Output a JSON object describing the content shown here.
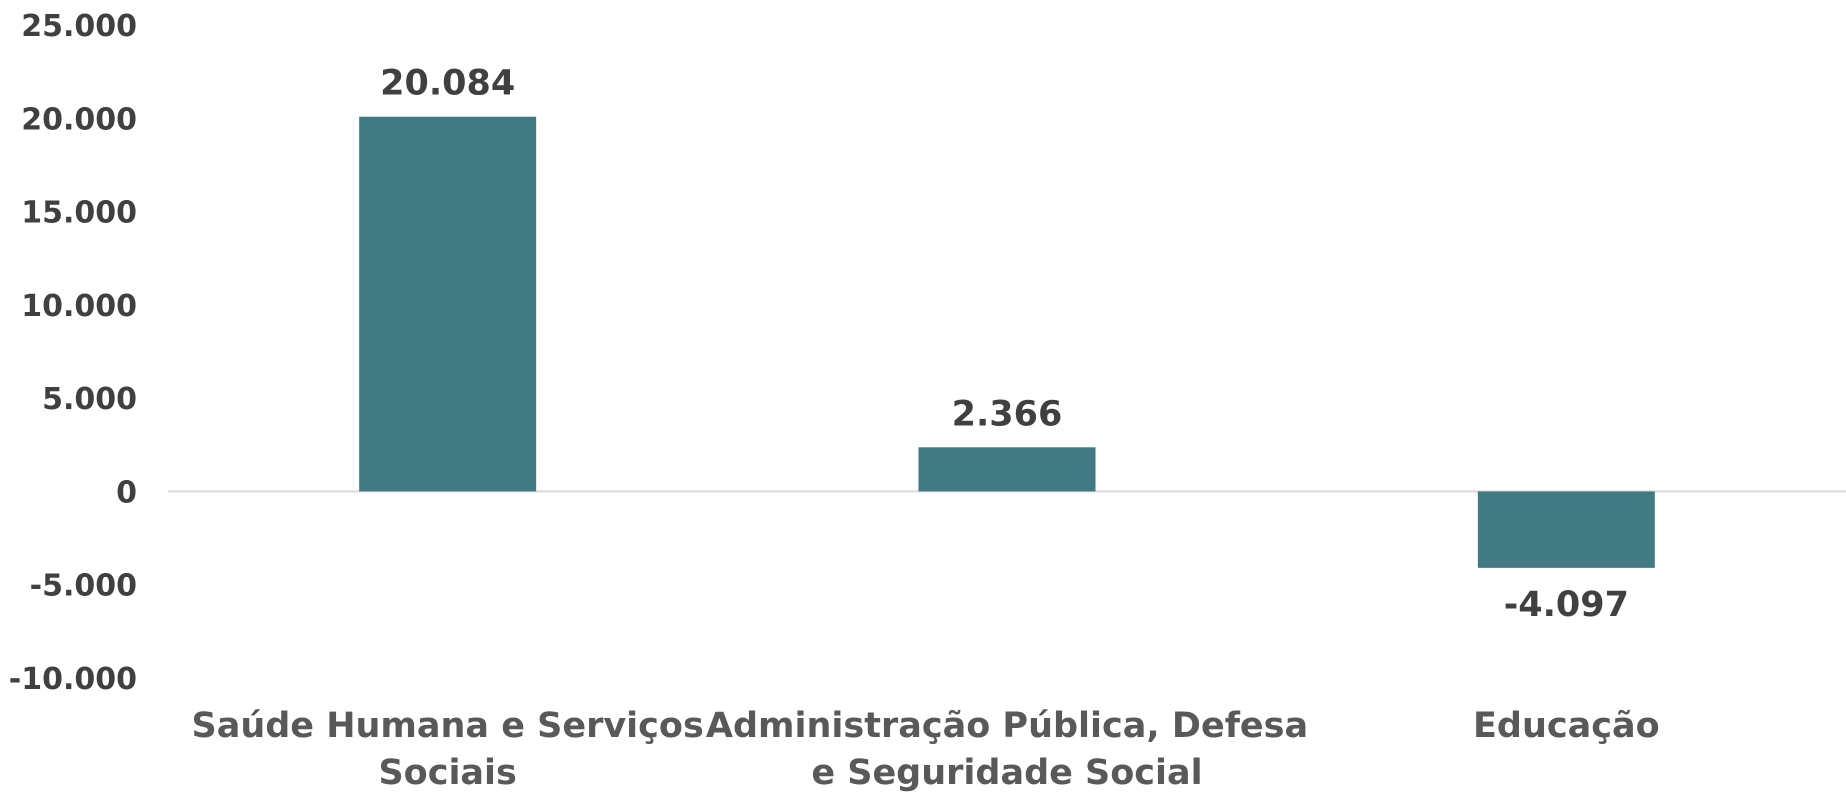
{
  "chart_data": {
    "type": "bar",
    "title": "",
    "xlabel": "",
    "ylabel": "",
    "categories": [
      [
        "Saúde Humana e Serviços",
        "Sociais"
      ],
      [
        "Administração Pública, Defesa",
        "e Seguridade Social"
      ],
      [
        "Educação"
      ]
    ],
    "values": [
      20084,
      2366,
      -4097
    ],
    "data_labels": [
      "20.084",
      "2.366",
      "-4.097"
    ],
    "ylim": [
      -10000,
      25000
    ],
    "yticks": [
      25000,
      20000,
      15000,
      10000,
      5000,
      0,
      -5000,
      -10000
    ],
    "ytick_labels": [
      "25.000",
      "20.000",
      "15.000",
      "10.000",
      "5.000",
      "0",
      "-5.000",
      "-10.000"
    ],
    "grid": false,
    "legend": false,
    "colors": {
      "bar": "#427A83",
      "axis": "#D9D9D9",
      "text": "#404040"
    }
  }
}
